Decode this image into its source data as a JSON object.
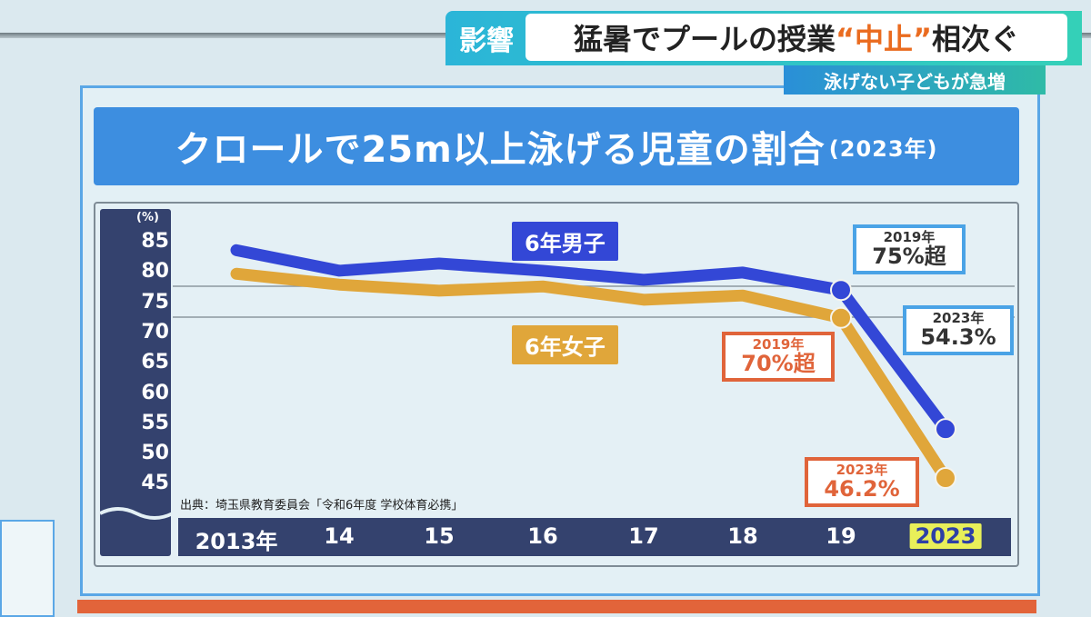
{
  "header": {
    "tag": "影響",
    "title_before": "猛暑でプールの授業",
    "title_emphasis": "“中止”",
    "title_after": "相次ぐ",
    "subtitle": "泳げない子どもが急増"
  },
  "chart_data": {
    "type": "line",
    "title": "クロールで25m以上泳げる児童の割合",
    "title_suffix": "(2023年)",
    "ylabel": "(%)",
    "ylim": [
      45,
      85
    ],
    "yticks": [
      "85",
      "80",
      "75",
      "70",
      "65",
      "60",
      "55",
      "50",
      "45"
    ],
    "categories": [
      "2013年",
      "14",
      "15",
      "16",
      "17",
      "18",
      "19",
      "2023"
    ],
    "highlight_category": "2023",
    "grid": "two horizontal reference lines",
    "series": [
      {
        "name": "6年男子",
        "color": "#3347d6",
        "values": [
          83.9,
          80.5,
          81.7,
          80.5,
          79.0,
          80.2,
          77.3,
          54.3
        ]
      },
      {
        "name": "6年女子",
        "color": "#e0a63a",
        "values": [
          80.0,
          78.2,
          77.2,
          77.9,
          75.7,
          76.4,
          72.7,
          46.2
        ]
      }
    ],
    "annotations": [
      {
        "series": "6年男子",
        "year": "2019年",
        "text": "75%超",
        "color": "#4aa3e6"
      },
      {
        "series": "6年男子",
        "year": "2023年",
        "text": "54.3%",
        "color": "#4aa3e6"
      },
      {
        "series": "6年女子",
        "year": "2019年",
        "text": "70%超",
        "color": "#e0643a"
      },
      {
        "series": "6年女子",
        "year": "2023年",
        "text": "46.2%",
        "color": "#e0643a"
      }
    ],
    "source": "出典：埼玉県教育委員会「令和6年度 学校体育必携」"
  }
}
